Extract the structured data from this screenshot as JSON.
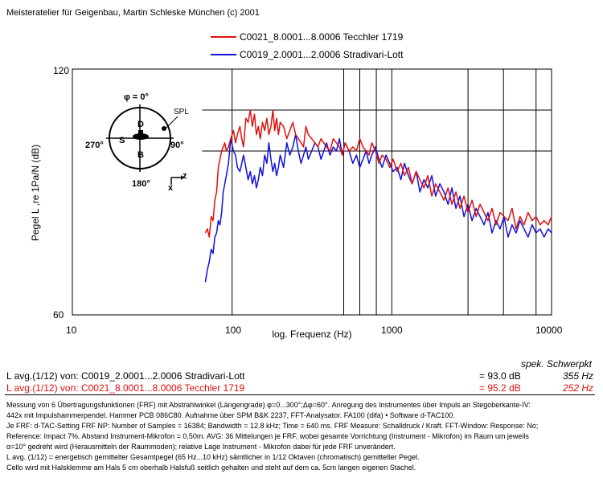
{
  "header": "Meisteratelier für Geigenbau, Martin Schleske München (c) 2001",
  "chart_data": {
    "type": "line",
    "x_scale": "log",
    "xlim": [
      10,
      10000
    ],
    "ylim": [
      60,
      120
    ],
    "x_ticks": [
      "10",
      "100",
      "1000",
      "10000"
    ],
    "y_ticks": [
      "120",
      "60"
    ],
    "xlabel": "log. Frequenz (Hz)",
    "ylabel": "Pegel L ,re 1Pa/N (dB)",
    "grid": true,
    "legend_placement": "top",
    "series": [
      {
        "name": "C0021_8.0001...8.0006 Tecchler 1719",
        "color": "#e01010",
        "x": [
          68,
          70,
          72,
          74,
          76,
          78,
          80,
          82,
          84,
          86,
          88,
          90,
          92,
          95,
          98,
          102,
          105,
          108,
          112,
          115,
          118,
          122,
          126,
          130,
          134,
          138,
          142,
          146,
          150,
          155,
          160,
          165,
          170,
          175,
          180,
          185,
          190,
          195,
          200,
          210,
          220,
          230,
          240,
          250,
          260,
          270,
          280,
          290,
          300,
          315,
          330,
          345,
          360,
          375,
          390,
          410,
          430,
          450,
          470,
          490,
          510,
          540,
          570,
          600,
          630,
          660,
          690,
          720,
          750,
          790,
          830,
          870,
          920,
          970,
          1020,
          1080,
          1140,
          1200,
          1270,
          1340,
          1420,
          1500,
          1590,
          1680,
          1780,
          1880,
          2000,
          2120,
          2250,
          2380,
          2520,
          2670,
          2830,
          3000,
          3180,
          3370,
          3570,
          3780,
          4000,
          4240,
          4490,
          4760,
          5040,
          5340,
          5660,
          6000,
          6350,
          6730,
          7130,
          7550,
          8000,
          8480,
          8980,
          9520,
          10000
        ],
        "y": [
          80,
          81,
          79,
          84,
          83,
          88,
          90,
          96,
          98,
          100,
          101,
          102,
          100,
          101,
          103,
          105,
          102,
          104,
          106,
          103,
          101,
          108,
          107,
          110,
          106,
          109,
          104,
          106,
          103,
          107,
          105,
          108,
          104,
          106,
          110,
          105,
          108,
          104,
          107,
          106,
          103,
          105,
          107,
          104,
          103,
          102,
          101,
          106,
          104,
          103,
          102,
          101,
          103,
          102,
          101,
          100,
          103,
          102,
          101,
          99,
          102,
          100,
          101,
          100,
          103,
          101,
          100,
          99,
          102,
          100,
          97,
          99,
          98,
          96,
          98,
          95,
          97,
          94,
          96,
          92,
          95,
          93,
          91,
          94,
          89,
          92,
          90,
          88,
          91,
          87,
          90,
          86,
          89,
          85,
          88,
          84,
          87,
          85,
          83,
          86,
          82,
          85,
          84,
          83,
          86,
          81,
          84,
          82,
          85,
          83,
          84,
          82,
          83,
          82,
          84
        ]
      },
      {
        "name": "C0019_2.0001...2.0006 Stradivari-Lott",
        "color": "#1010e0",
        "x": [
          68,
          70,
          72,
          74,
          76,
          78,
          80,
          82,
          84,
          86,
          88,
          90,
          92,
          95,
          98,
          102,
          105,
          108,
          112,
          115,
          118,
          122,
          126,
          130,
          134,
          138,
          142,
          146,
          150,
          155,
          160,
          165,
          170,
          175,
          180,
          185,
          190,
          195,
          200,
          210,
          220,
          230,
          240,
          250,
          260,
          270,
          280,
          290,
          300,
          315,
          330,
          345,
          360,
          375,
          390,
          410,
          430,
          450,
          470,
          490,
          510,
          540,
          570,
          600,
          630,
          660,
          690,
          720,
          750,
          790,
          830,
          870,
          920,
          970,
          1020,
          1080,
          1140,
          1200,
          1270,
          1340,
          1420,
          1500,
          1590,
          1680,
          1780,
          1880,
          2000,
          2120,
          2250,
          2380,
          2520,
          2670,
          2830,
          3000,
          3180,
          3370,
          3570,
          3780,
          4000,
          4240,
          4490,
          4760,
          5040,
          5340,
          5660,
          6000,
          6350,
          6730,
          7130,
          7550,
          8000,
          8480,
          8980,
          9520,
          10000
        ],
        "y": [
          68,
          71,
          73,
          76,
          75,
          79,
          80,
          83,
          82,
          85,
          90,
          92,
          94,
          97,
          103,
          100,
          99,
          96,
          95,
          97,
          99,
          96,
          93,
          95,
          92,
          94,
          91,
          93,
          96,
          94,
          99,
          97,
          102,
          98,
          95,
          97,
          94,
          96,
          99,
          96,
          102,
          99,
          101,
          104,
          100,
          97,
          99,
          101,
          98,
          100,
          102,
          101,
          98,
          100,
          102,
          99,
          101,
          100,
          103,
          99,
          102,
          100,
          97,
          99,
          96,
          98,
          100,
          97,
          99,
          101,
          98,
          96,
          99,
          97,
          95,
          96,
          93,
          97,
          94,
          92,
          95,
          90,
          93,
          91,
          94,
          89,
          92,
          90,
          87,
          91,
          86,
          89,
          84,
          87,
          83,
          86,
          84,
          82,
          85,
          80,
          83,
          81,
          84,
          79,
          82,
          80,
          83,
          81,
          79,
          82,
          80,
          81,
          79,
          81,
          80
        ]
      }
    ]
  },
  "directivity": {
    "phi_label": "φ = 0°",
    "angle_270": "270°",
    "angle_90": "90°",
    "angle_180": "180°",
    "label_d": "D",
    "label_s": "S",
    "label_b": "B",
    "spl_label": "SPL",
    "axis_z": "z",
    "axis_x": "x"
  },
  "summary": {
    "heading": "spek. Schwerpkt",
    "rows": [
      {
        "label": "L avg.(1/12) von: C0019_2.0001...2.0006 Stradivari-Lott",
        "level": "= 93.0 dB",
        "centroid": "355 Hz",
        "color": "#000000"
      },
      {
        "label": "L avg.(1/12) von: C0021_8.0001...8.0006 Tecchler 1719",
        "level": "= 95.2 dB",
        "centroid": "252 Hz",
        "color": "#e01010"
      }
    ]
  },
  "notes": [
    "Messung von 6 Übertragungsfunktionen (FRF) mit Abstrahlwinkel (Längengrade) φ=0...300°;Δφ=60°. Anregung des Instrumentes über Impuls an Stegoberkante-IV:",
    "442x mit Impulshammerpendel. Hammer PCB 086C80. Aufnahme über SPM B&K 2237,  FFT-Analysator. FA100 (difa) • Software d-TAC100.",
    "Je FRF: d-TAC-Setting FRF  NP: Number of Samples = 16384; Bandwidth = 12.8 kHz; Time = 640 ms. FRF Measure: Schalldruck / Kraft. FFT-Window: Response: No;",
    "Reference: Impact 7%. Abstand Instrument-Mikrofon = 0,50m. AVG: 36 Mittelungen je FRF, wobei gesamte Vorrichtung  (Instrument - Mikrofon) im Raum um jeweils",
    "α=10° gedreht wird (Herausmitteln der Raummoden); relative Lage Instrument - Mikrofon  dabei für jede FRF unverändert.",
    "L avg. (1/12) = energetisch gemittelter Gesamtpegel (65 Hz...10 kHz) sämtlicher in 1/12 Oktaven (chromatisch) gemittelter Pegel.",
    "Cello wird mit Halsklemme am Hals 5 cm oberhalb Halsfuß seitlich gehalten und steht auf dem ca. 5cm langen eigenen Stachel."
  ]
}
